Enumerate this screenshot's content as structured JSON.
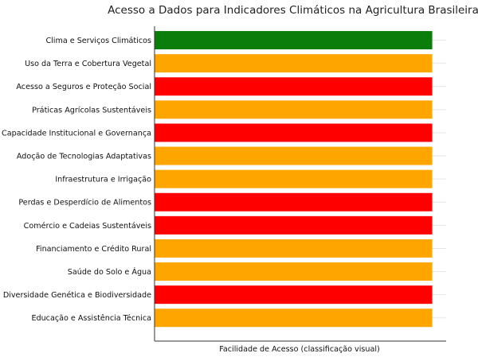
{
  "chart_data": {
    "type": "bar",
    "orientation": "horizontal",
    "title": "Acesso a Dados para Indicadores Climáticos na Agricultura Brasileira",
    "xlabel": "Facilidade de Acesso (classificação visual)",
    "ylabel": "",
    "grid": true,
    "legend": "none",
    "categories": [
      "Clima e Serviços Climáticos",
      "Uso da Terra e Cobertura Vegetal",
      "Acesso a Seguros e Proteção Social",
      "Práticas Agrícolas Sustentáveis",
      "Capacidade Institucional e Governança",
      "Adoção de Tecnologias Adaptativas",
      "Infraestrutura e Irrigação",
      "Perdas e Desperdício de Alimentos",
      "Comércio e Cadeias Sustentáveis",
      "Financiamento e Crédito Rural",
      "Saúde do Solo e Água",
      "Diversidade Genética e Biodiversidade",
      "Educação e Assistência Técnica"
    ],
    "values": [
      1,
      1,
      1,
      1,
      1,
      1,
      1,
      1,
      1,
      1,
      1,
      1,
      1
    ],
    "xlim": [
      0,
      1.05
    ],
    "colors": [
      "#0a7d0a",
      "#ffa500",
      "#ff0000",
      "#ffa500",
      "#ff0000",
      "#ffa500",
      "#ffa500",
      "#ff0000",
      "#ff0000",
      "#ffa500",
      "#ffa500",
      "#ff0000",
      "#ffa500"
    ]
  }
}
